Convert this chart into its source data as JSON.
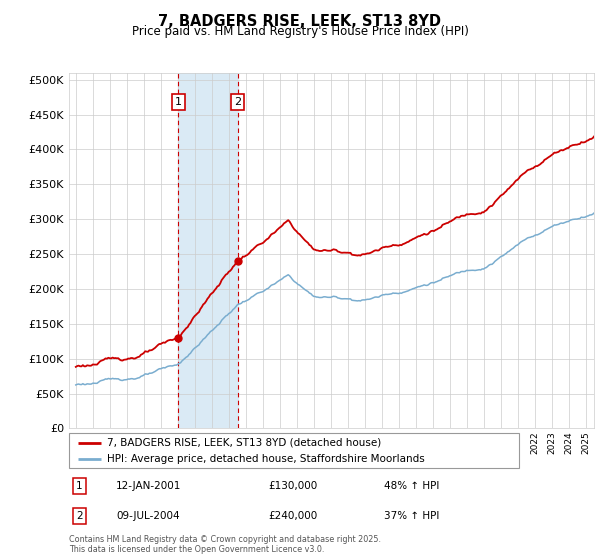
{
  "title": "7, BADGERS RISE, LEEK, ST13 8YD",
  "subtitle": "Price paid vs. HM Land Registry's House Price Index (HPI)",
  "legend_property": "7, BADGERS RISE, LEEK, ST13 8YD (detached house)",
  "legend_hpi": "HPI: Average price, detached house, Staffordshire Moorlands",
  "sale1_date": "12-JAN-2001",
  "sale1_price": 130000,
  "sale1_label": "48% ↑ HPI",
  "sale2_date": "09-JUL-2004",
  "sale2_price": 240000,
  "sale2_label": "37% ↑ HPI",
  "footnote": "Contains HM Land Registry data © Crown copyright and database right 2025.\nThis data is licensed under the Open Government Licence v3.0.",
  "property_color": "#cc0000",
  "hpi_color": "#7aadcf",
  "shade_color": "#daeaf5",
  "grid_color": "#cccccc",
  "bg_color": "#f0f0f0",
  "ylim": [
    0,
    510000
  ],
  "yticks": [
    0,
    50000,
    100000,
    150000,
    200000,
    250000,
    300000,
    350000,
    400000,
    450000,
    500000
  ],
  "sale1_x": 2001.04,
  "sale2_x": 2004.52,
  "xmin": 1994.6,
  "xmax": 2025.5
}
